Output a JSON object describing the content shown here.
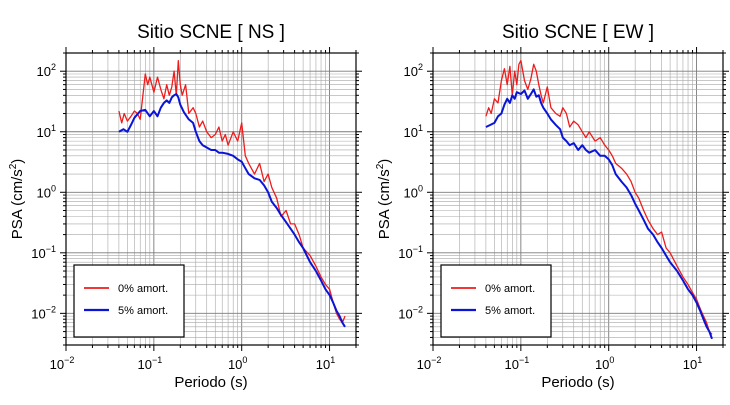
{
  "chart_data": [
    {
      "type": "line",
      "title": "Sitio SCNE [ NS ]",
      "xlabel": "Periodo (s)",
      "ylabel_main": "PSA (cm/s",
      "ylabel_sup": "2",
      "ylabel_close": ")",
      "xscale": "log",
      "yscale": "log",
      "xlim": [
        0.01,
        20
      ],
      "ylim": [
        0.003,
        200
      ],
      "grid": true,
      "legend_position": "bottom-left",
      "x_ticks": [
        {
          "value": 0.01,
          "base": "10",
          "exp": "−2"
        },
        {
          "value": 0.1,
          "base": "10",
          "exp": "−1"
        },
        {
          "value": 1,
          "base": "10",
          "exp": "0"
        },
        {
          "value": 10,
          "base": "10",
          "exp": "1"
        }
      ],
      "y_ticks": [
        {
          "value": 0.01,
          "base": "10",
          "exp": "−2"
        },
        {
          "value": 0.1,
          "base": "10",
          "exp": "−1"
        },
        {
          "value": 1,
          "base": "10",
          "exp": "0"
        },
        {
          "value": 10,
          "base": "10",
          "exp": "1"
        },
        {
          "value": 100,
          "base": "10",
          "exp": "2"
        }
      ],
      "series": [
        {
          "name": "0% amort.",
          "color": "#ee1c1c",
          "x": [
            0.04,
            0.043,
            0.046,
            0.05,
            0.055,
            0.06,
            0.065,
            0.07,
            0.075,
            0.08,
            0.085,
            0.09,
            0.1,
            0.11,
            0.12,
            0.13,
            0.14,
            0.15,
            0.16,
            0.17,
            0.18,
            0.19,
            0.2,
            0.21,
            0.23,
            0.25,
            0.28,
            0.3,
            0.33,
            0.36,
            0.4,
            0.45,
            0.5,
            0.55,
            0.6,
            0.65,
            0.7,
            0.8,
            0.9,
            1.0,
            1.1,
            1.2,
            1.4,
            1.6,
            1.8,
            2.0,
            2.2,
            2.5,
            2.8,
            3.2,
            3.6,
            4.0,
            4.5,
            5.0,
            6.0,
            7.0,
            8.0,
            9.0,
            10.0,
            11.0,
            12.0,
            13.0,
            14.0,
            15.0
          ],
          "y": [
            22,
            14,
            20,
            15,
            18,
            22,
            20,
            16,
            40,
            90,
            60,
            80,
            45,
            80,
            50,
            35,
            60,
            40,
            55,
            100,
            40,
            150,
            60,
            40,
            60,
            20,
            25,
            20,
            12,
            15,
            10,
            8,
            9,
            12,
            7,
            9,
            6,
            10,
            7,
            14,
            4,
            3,
            2,
            3,
            1.5,
            2,
            1.2,
            0.8,
            0.4,
            0.5,
            0.3,
            0.3,
            0.2,
            0.12,
            0.09,
            0.06,
            0.04,
            0.03,
            0.025,
            0.015,
            0.01,
            0.008,
            0.007,
            0.009
          ]
        },
        {
          "name": "5% amort.",
          "color": "#0a14d6",
          "x": [
            0.04,
            0.045,
            0.05,
            0.055,
            0.06,
            0.07,
            0.08,
            0.09,
            0.1,
            0.11,
            0.12,
            0.13,
            0.14,
            0.15,
            0.16,
            0.17,
            0.18,
            0.19,
            0.2,
            0.22,
            0.25,
            0.28,
            0.3,
            0.33,
            0.36,
            0.4,
            0.45,
            0.5,
            0.55,
            0.6,
            0.7,
            0.8,
            0.9,
            1.0,
            1.1,
            1.2,
            1.4,
            1.6,
            1.8,
            2.0,
            2.2,
            2.5,
            2.8,
            3.2,
            3.6,
            4.0,
            4.5,
            5.0,
            6.0,
            7.0,
            8.0,
            9.0,
            10.0,
            11.0,
            12.0,
            13.0,
            14.0,
            15.0
          ],
          "y": [
            10,
            11,
            10,
            13,
            17,
            22,
            23,
            18,
            22,
            18,
            25,
            30,
            33,
            30,
            37,
            40,
            42,
            37,
            28,
            21,
            16,
            14,
            10,
            7,
            6,
            5.5,
            5,
            5,
            4.5,
            4.5,
            4.3,
            4,
            3.5,
            3.2,
            2.5,
            2,
            1.7,
            1.6,
            1.3,
            1.0,
            0.7,
            0.55,
            0.42,
            0.32,
            0.25,
            0.2,
            0.15,
            0.12,
            0.07,
            0.05,
            0.035,
            0.025,
            0.02,
            0.015,
            0.011,
            0.009,
            0.007,
            0.006
          ]
        }
      ]
    },
    {
      "type": "line",
      "title": "Sitio SCNE [ EW ]",
      "xlabel": "Periodo (s)",
      "ylabel_main": "PSA (cm/s",
      "ylabel_sup": "2",
      "ylabel_close": ")",
      "xscale": "log",
      "yscale": "log",
      "xlim": [
        0.01,
        20
      ],
      "ylim": [
        0.003,
        200
      ],
      "grid": true,
      "legend_position": "bottom-left",
      "x_ticks": [
        {
          "value": 0.01,
          "base": "10",
          "exp": "−2"
        },
        {
          "value": 0.1,
          "base": "10",
          "exp": "−1"
        },
        {
          "value": 1,
          "base": "10",
          "exp": "0"
        },
        {
          "value": 10,
          "base": "10",
          "exp": "1"
        }
      ],
      "y_ticks": [
        {
          "value": 0.01,
          "base": "10",
          "exp": "−2"
        },
        {
          "value": 0.1,
          "base": "10",
          "exp": "−1"
        },
        {
          "value": 1,
          "base": "10",
          "exp": "0"
        },
        {
          "value": 10,
          "base": "10",
          "exp": "1"
        },
        {
          "value": 100,
          "base": "10",
          "exp": "2"
        }
      ],
      "series": [
        {
          "name": "0% amort.",
          "color": "#ee1c1c",
          "x": [
            0.04,
            0.043,
            0.046,
            0.05,
            0.055,
            0.06,
            0.065,
            0.07,
            0.075,
            0.08,
            0.085,
            0.09,
            0.095,
            0.1,
            0.11,
            0.12,
            0.13,
            0.14,
            0.15,
            0.16,
            0.17,
            0.18,
            0.2,
            0.22,
            0.25,
            0.28,
            0.3,
            0.33,
            0.36,
            0.4,
            0.45,
            0.5,
            0.55,
            0.6,
            0.7,
            0.8,
            0.9,
            1.0,
            1.1,
            1.2,
            1.4,
            1.6,
            1.8,
            2.0,
            2.2,
            2.5,
            2.8,
            3.2,
            3.6,
            4.0,
            4.5,
            5.0,
            6.0,
            7.0,
            8.0,
            9.0,
            10.0,
            11.0,
            12.0,
            13.0,
            14.0,
            15.0
          ],
          "y": [
            18,
            25,
            20,
            35,
            30,
            70,
            110,
            60,
            120,
            40,
            100,
            60,
            130,
            150,
            70,
            50,
            75,
            130,
            100,
            60,
            40,
            30,
            55,
            25,
            20,
            18,
            25,
            20,
            12,
            15,
            13,
            10,
            8,
            10,
            7,
            8,
            6,
            5,
            4,
            3,
            2.5,
            2,
            1.5,
            1.0,
            0.8,
            0.5,
            0.35,
            0.25,
            0.2,
            0.22,
            0.12,
            0.1,
            0.06,
            0.04,
            0.03,
            0.022,
            0.017,
            0.012,
            0.009,
            0.007,
            0.005,
            0.0045
          ]
        },
        {
          "name": "5% amort.",
          "color": "#0a14d6",
          "x": [
            0.04,
            0.045,
            0.05,
            0.055,
            0.06,
            0.065,
            0.07,
            0.075,
            0.08,
            0.085,
            0.09,
            0.1,
            0.11,
            0.12,
            0.13,
            0.14,
            0.15,
            0.16,
            0.17,
            0.18,
            0.2,
            0.22,
            0.25,
            0.28,
            0.3,
            0.33,
            0.36,
            0.4,
            0.45,
            0.5,
            0.55,
            0.6,
            0.7,
            0.8,
            0.9,
            1.0,
            1.1,
            1.2,
            1.4,
            1.6,
            1.8,
            2.0,
            2.2,
            2.5,
            2.8,
            3.2,
            3.6,
            4.0,
            4.5,
            5.0,
            6.0,
            7.0,
            8.0,
            9.0,
            10.0,
            11.0,
            12.0,
            13.0,
            14.0,
            15.0
          ],
          "y": [
            12,
            13,
            14,
            18,
            20,
            28,
            35,
            30,
            40,
            35,
            45,
            42,
            48,
            35,
            42,
            50,
            38,
            40,
            30,
            25,
            20,
            16,
            13,
            11,
            8,
            7,
            6,
            6.5,
            5,
            6,
            5,
            4.5,
            5,
            4,
            4,
            3.5,
            2.8,
            2,
            1.5,
            1.2,
            0.9,
            0.65,
            0.5,
            0.35,
            0.25,
            0.2,
            0.15,
            0.12,
            0.09,
            0.07,
            0.05,
            0.035,
            0.025,
            0.02,
            0.015,
            0.011,
            0.008,
            0.006,
            0.005,
            0.0038
          ]
        }
      ]
    }
  ]
}
